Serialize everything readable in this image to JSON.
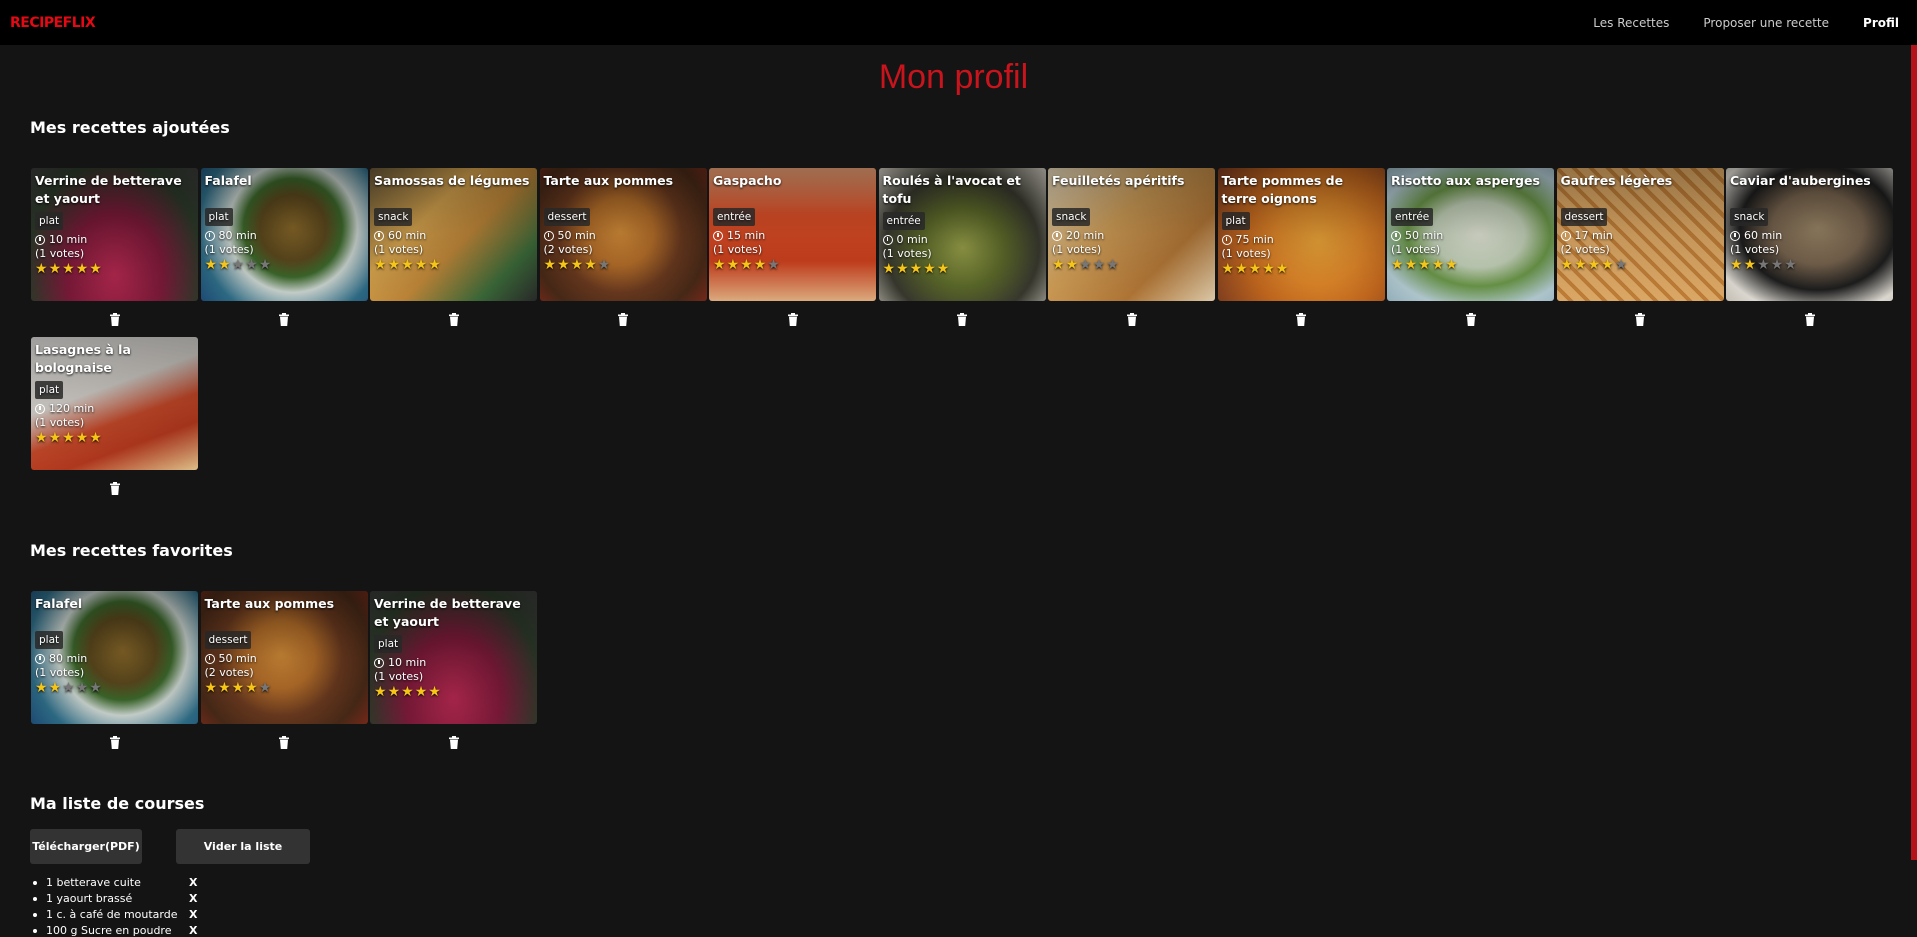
{
  "nav": {
    "logo": "RECIPEFLIX",
    "links": [
      "Les Recettes",
      "Proposer une recette",
      "Profil"
    ]
  },
  "page_title": "Mon profil",
  "sections": {
    "added_title": "Mes recettes ajoutées",
    "favorites_title": "Mes recettes favorites",
    "shopping_title": "Ma liste de courses"
  },
  "added_recipes": [
    {
      "title": "Verrine de betterave et yaourt",
      "category": "plat",
      "time": "10 min",
      "votes": "(1 votes)",
      "rating": 5,
      "image": "verrine"
    },
    {
      "title": "Falafel",
      "category": "plat",
      "time": "80 min",
      "votes": "(1 votes)",
      "rating": 2,
      "image": "falafel"
    },
    {
      "title": "Samossas de légumes",
      "category": "snack",
      "time": "60 min",
      "votes": "(1 votes)",
      "rating": 5,
      "image": "samossa"
    },
    {
      "title": "Tarte aux pommes",
      "category": "dessert",
      "time": "50 min",
      "votes": "(2 votes)",
      "rating": 4,
      "image": "tarte"
    },
    {
      "title": "Gaspacho",
      "category": "entrée",
      "time": "15 min",
      "votes": "(1 votes)",
      "rating": 4,
      "image": "gaspacho"
    },
    {
      "title": "Roulés à l'avocat et tofu",
      "category": "entrée",
      "time": "0 min",
      "votes": "(1 votes)",
      "rating": 5,
      "image": "roules"
    },
    {
      "title": "Feuilletés apéritifs",
      "category": "snack",
      "time": "20 min",
      "votes": "(1 votes)",
      "rating": 2,
      "image": "feuillete"
    },
    {
      "title": "Tarte pommes de terre oignons",
      "category": "plat",
      "time": "75 min",
      "votes": "(1 votes)",
      "rating": 5,
      "image": "tartepdt"
    },
    {
      "title": "Risotto aux asperges",
      "category": "entrée",
      "time": "50 min",
      "votes": "(1 votes)",
      "rating": 5,
      "image": "risotto"
    },
    {
      "title": "Gaufres légères",
      "category": "dessert",
      "time": "17 min",
      "votes": "(2 votes)",
      "rating": 4,
      "image": "gaufre"
    },
    {
      "title": "Caviar d'aubergines",
      "category": "snack",
      "time": "60 min",
      "votes": "(1 votes)",
      "rating": 2,
      "image": "caviar"
    },
    {
      "title": "Lasagnes à la bolognaise",
      "category": "plat",
      "time": "120 min",
      "votes": "(1 votes)",
      "rating": 5,
      "image": "lasagne"
    }
  ],
  "favorite_recipes": [
    {
      "title": "Falafel",
      "category": "plat",
      "time": "80 min",
      "votes": "(1 votes)",
      "rating": 2,
      "image": "falafel"
    },
    {
      "title": "Tarte aux pommes",
      "category": "dessert",
      "time": "50 min",
      "votes": "(2 votes)",
      "rating": 4,
      "image": "tarte"
    },
    {
      "title": "Verrine de betterave et yaourt",
      "category": "plat",
      "time": "10 min",
      "votes": "(1 votes)",
      "rating": 5,
      "image": "verrine"
    }
  ],
  "shopping": {
    "download_label": "Télécharger(PDF)",
    "clear_label": "Vider la liste",
    "remove_label": "X",
    "items": [
      "1 betterave cuite",
      "1 yaourt brassé",
      "1 c. à café de moutarde",
      "100 g Sucre en poudre"
    ]
  },
  "colors": {
    "brand": "#e50914",
    "title": "#c8141c",
    "star": "#f5c518",
    "background": "#141414"
  },
  "icons": {
    "delete": "trash-icon",
    "time": "clock-icon",
    "rating": "star-icon"
  }
}
